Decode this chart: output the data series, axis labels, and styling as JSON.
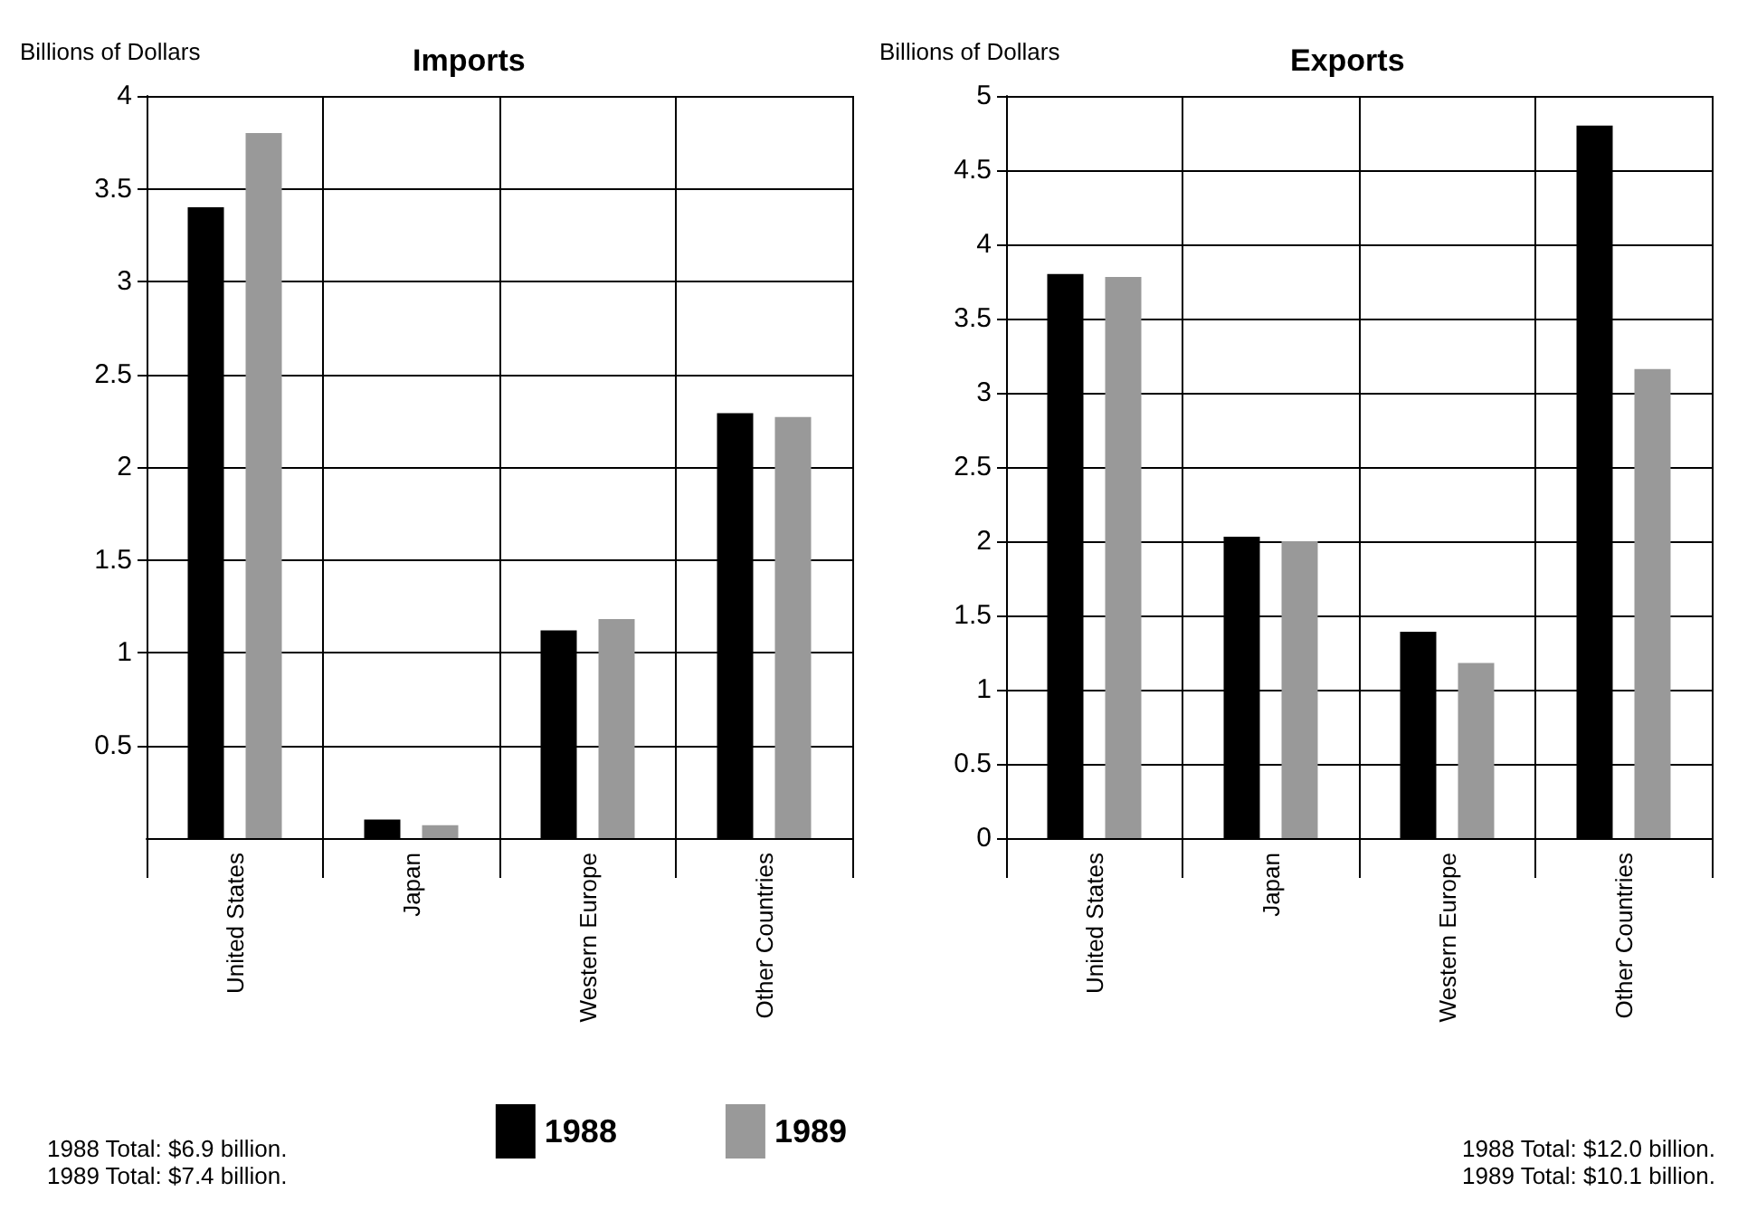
{
  "chart_data": [
    {
      "type": "bar",
      "title": "Imports",
      "ylabel": "Billions of Dollars",
      "categories": [
        "United States",
        "Japan",
        "Western Europe",
        "Other Countries"
      ],
      "series": [
        {
          "name": "1988",
          "color": "#000000",
          "values": [
            3.4,
            0.1,
            1.12,
            2.29
          ]
        },
        {
          "name": "1989",
          "color": "#999999",
          "values": [
            3.8,
            0.07,
            1.18,
            2.27
          ]
        }
      ],
      "ylim": [
        0,
        4
      ],
      "yticks": [
        0.5,
        1,
        1.5,
        2,
        2.5,
        3,
        3.5,
        4
      ],
      "grid": true,
      "legend": "bottom right",
      "annotations": [
        "1988 Total: $6.9 billion.",
        "1989 Total: $7.4 billion."
      ]
    },
    {
      "type": "bar",
      "title": "Exports",
      "ylabel": "Billions of Dollars",
      "categories": [
        "United States",
        "Japan",
        "Western Europe",
        "Other Countries"
      ],
      "series": [
        {
          "name": "1988",
          "color": "#000000",
          "values": [
            3.8,
            2.03,
            1.39,
            4.8
          ]
        },
        {
          "name": "1989",
          "color": "#999999",
          "values": [
            3.78,
            2.0,
            1.18,
            3.16
          ]
        }
      ],
      "ylim": [
        0,
        5
      ],
      "yticks": [
        0,
        0.5,
        1,
        1.5,
        2,
        2.5,
        3,
        3.5,
        4,
        4.5,
        5
      ],
      "grid": true,
      "legend": false,
      "annotations": [
        "1988 Total: $12.0 billion.",
        "1989 Total: $10.1 billion."
      ]
    }
  ]
}
